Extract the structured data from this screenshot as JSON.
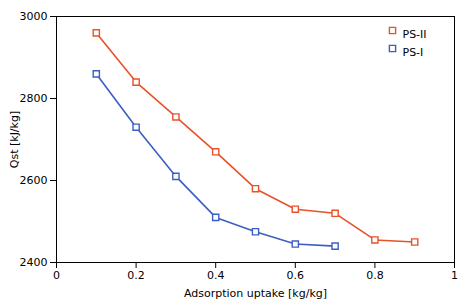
{
  "chart_data": {
    "type": "line",
    "x": [
      0.1,
      0.2,
      0.3,
      0.4,
      0.5,
      0.6,
      0.7,
      0.8,
      0.9
    ],
    "series": [
      {
        "name": "PS-II",
        "color": "#E8522A",
        "values": [
          2960,
          2840,
          2755,
          2670,
          2580,
          2530,
          2520,
          2455,
          2450
        ]
      },
      {
        "name": "PS-I",
        "color": "#3B5EC4",
        "values": [
          2860,
          2730,
          2610,
          2510,
          2475,
          2445,
          2440,
          null,
          null
        ]
      }
    ],
    "x_label": "Adsorption uptake [kg/kg]",
    "y_label": "Qst [kJ/kg]",
    "xlim": [
      0,
      1
    ],
    "ylim": [
      2400,
      3000
    ],
    "xticks": [
      0,
      0.2,
      0.4,
      0.6,
      0.8,
      1
    ],
    "yticks": [
      2400,
      2600,
      2800,
      3000
    ],
    "marker": "square",
    "legend": "upper right",
    "grid": false
  }
}
